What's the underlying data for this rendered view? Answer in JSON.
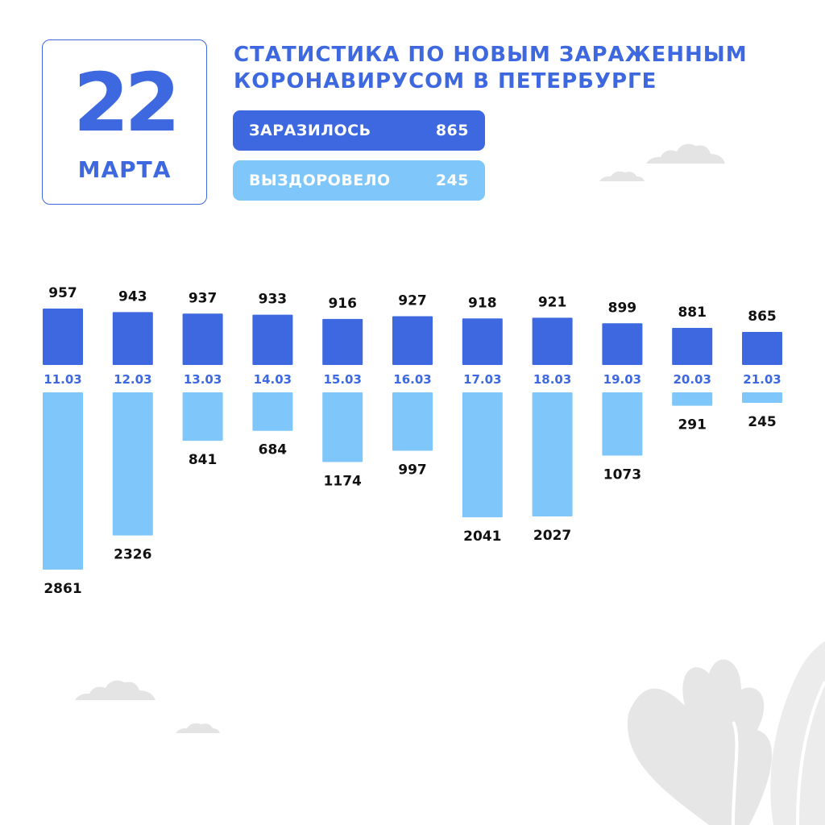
{
  "header": {
    "day": "22",
    "month": "МАРТА",
    "title_line1": "СТАТИСТИКА ПО НОВЫМ ЗАРАЖЕННЫМ",
    "title_line2": "КОРОНАВИРУСОМ В ПЕТЕРБУРГЕ"
  },
  "summary": {
    "infected_label": "ЗАРАЗИЛОСЬ",
    "infected_value": "865",
    "recovered_label": "ВЫЗДОРОВЕЛО",
    "recovered_value": "245"
  },
  "colors": {
    "infected": "#3d68df",
    "recovered": "#7fc7fa",
    "date_label": "#3d68df",
    "value_label": "#111111",
    "decor": "#e4e4e4"
  },
  "chart_data": {
    "type": "bar",
    "categories": [
      "11.03",
      "12.03",
      "13.03",
      "14.03",
      "15.03",
      "16.03",
      "17.03",
      "18.03",
      "19.03",
      "20.03",
      "21.03"
    ],
    "series": [
      {
        "name": "ЗАРАЗИЛОСЬ",
        "values": [
          957,
          943,
          937,
          933,
          916,
          927,
          918,
          921,
          899,
          881,
          865
        ]
      },
      {
        "name": "ВЫЗДОРОВЕЛО",
        "values": [
          2861,
          2326,
          841,
          684,
          1174,
          997,
          2041,
          2027,
          1073,
          291,
          245
        ]
      }
    ],
    "layout": "diverging: infected bars upward, recovered bars downward"
  }
}
